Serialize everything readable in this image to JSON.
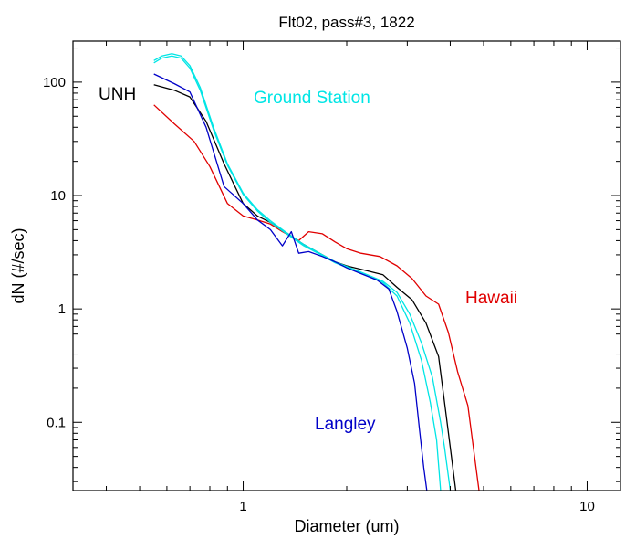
{
  "chart_data": {
    "type": "line",
    "title": "Flt02, pass#3, 1822",
    "xlabel": "Diameter (um)",
    "ylabel": "dN (#/sec)",
    "x_scale": "log",
    "y_scale": "log",
    "xlim": [
      0.32,
      12.5
    ],
    "ylim": [
      0.025,
      230
    ],
    "x_ticks": [
      {
        "value": 1,
        "label": "1"
      },
      {
        "value": 10,
        "label": "10"
      }
    ],
    "y_ticks": [
      {
        "value": 0.1,
        "label": "0.1"
      },
      {
        "value": 1,
        "label": "1"
      },
      {
        "value": 10,
        "label": "10"
      },
      {
        "value": 100,
        "label": "100"
      }
    ],
    "grid": false,
    "series": [
      {
        "name": "Hawaii",
        "color": "#e00000",
        "points": [
          [
            0.55,
            63
          ],
          [
            0.63,
            43
          ],
          [
            0.72,
            30
          ],
          [
            0.8,
            18
          ],
          [
            0.9,
            8.5
          ],
          [
            1.0,
            6.6
          ],
          [
            1.1,
            6.1
          ],
          [
            1.2,
            5.6
          ],
          [
            1.3,
            4.8
          ],
          [
            1.45,
            4.0
          ],
          [
            1.55,
            4.8
          ],
          [
            1.7,
            4.6
          ],
          [
            1.85,
            3.9
          ],
          [
            2.0,
            3.4
          ],
          [
            2.2,
            3.1
          ],
          [
            2.5,
            2.9
          ],
          [
            2.8,
            2.4
          ],
          [
            3.1,
            1.85
          ],
          [
            3.4,
            1.3
          ],
          [
            3.7,
            1.1
          ],
          [
            3.95,
            0.62
          ],
          [
            4.2,
            0.28
          ],
          [
            4.5,
            0.14
          ],
          [
            4.85,
            0.025
          ]
        ]
      },
      {
        "name": "UNH",
        "color": "#000000",
        "points": [
          [
            0.55,
            95
          ],
          [
            0.63,
            85
          ],
          [
            0.7,
            74
          ],
          [
            0.78,
            45
          ],
          [
            0.88,
            19
          ],
          [
            1.0,
            8.5
          ],
          [
            1.1,
            6.6
          ],
          [
            1.2,
            5.8
          ],
          [
            1.35,
            4.6
          ],
          [
            1.5,
            3.7
          ],
          [
            1.7,
            3.0
          ],
          [
            1.85,
            2.6
          ],
          [
            2.0,
            2.4
          ],
          [
            2.25,
            2.2
          ],
          [
            2.55,
            2.0
          ],
          [
            2.8,
            1.55
          ],
          [
            3.1,
            1.2
          ],
          [
            3.4,
            0.75
          ],
          [
            3.7,
            0.38
          ],
          [
            3.85,
            0.15
          ],
          [
            4.0,
            0.06
          ],
          [
            4.15,
            0.025
          ]
        ]
      },
      {
        "name": "Ground Station",
        "color": "#00e5e5",
        "points": [
          [
            0.55,
            155
          ],
          [
            0.58,
            170
          ],
          [
            0.62,
            178
          ],
          [
            0.66,
            170
          ],
          [
            0.7,
            140
          ],
          [
            0.75,
            90
          ],
          [
            0.82,
            40
          ],
          [
            0.9,
            19
          ],
          [
            1.0,
            10.5
          ],
          [
            1.1,
            7.5
          ],
          [
            1.2,
            6.0
          ],
          [
            1.35,
            4.6
          ],
          [
            1.5,
            3.7
          ],
          [
            1.7,
            3.0
          ],
          [
            1.85,
            2.6
          ],
          [
            2.05,
            2.3
          ],
          [
            2.3,
            2.0
          ],
          [
            2.55,
            1.75
          ],
          [
            2.8,
            1.4
          ],
          [
            3.05,
            0.9
          ],
          [
            3.3,
            0.5
          ],
          [
            3.55,
            0.25
          ],
          [
            3.75,
            0.1
          ],
          [
            3.85,
            0.06
          ],
          [
            4.0,
            0.025
          ]
        ]
      },
      {
        "name": "Ground Station",
        "color": "#00e5e5",
        "points": [
          [
            0.55,
            148
          ],
          [
            0.58,
            163
          ],
          [
            0.62,
            170
          ],
          [
            0.66,
            163
          ],
          [
            0.7,
            133
          ],
          [
            0.75,
            85
          ],
          [
            0.82,
            38
          ],
          [
            0.9,
            18.5
          ],
          [
            1.0,
            10.2
          ],
          [
            1.1,
            7.3
          ],
          [
            1.2,
            5.8
          ],
          [
            1.35,
            4.5
          ],
          [
            1.5,
            3.6
          ],
          [
            1.7,
            2.95
          ],
          [
            1.85,
            2.55
          ],
          [
            2.05,
            2.25
          ],
          [
            2.3,
            1.95
          ],
          [
            2.55,
            1.7
          ],
          [
            2.8,
            1.3
          ],
          [
            3.05,
            0.75
          ],
          [
            3.3,
            0.35
          ],
          [
            3.5,
            0.15
          ],
          [
            3.65,
            0.07
          ],
          [
            3.75,
            0.025
          ]
        ]
      },
      {
        "name": "Langley",
        "color": "#0000c8",
        "points": [
          [
            0.55,
            118
          ],
          [
            0.63,
            97
          ],
          [
            0.7,
            82
          ],
          [
            0.78,
            40
          ],
          [
            0.88,
            12
          ],
          [
            1.0,
            8.5
          ],
          [
            1.1,
            6.1
          ],
          [
            1.2,
            5.0
          ],
          [
            1.3,
            3.6
          ],
          [
            1.38,
            4.8
          ],
          [
            1.45,
            3.1
          ],
          [
            1.55,
            3.2
          ],
          [
            1.7,
            2.9
          ],
          [
            1.85,
            2.6
          ],
          [
            2.0,
            2.3
          ],
          [
            2.2,
            2.05
          ],
          [
            2.45,
            1.8
          ],
          [
            2.65,
            1.5
          ],
          [
            2.8,
            0.95
          ],
          [
            3.0,
            0.45
          ],
          [
            3.15,
            0.22
          ],
          [
            3.25,
            0.09
          ],
          [
            3.35,
            0.04
          ],
          [
            3.42,
            0.025
          ]
        ]
      }
    ],
    "annotations": [
      {
        "text": "UNH",
        "color": "#000000"
      },
      {
        "text": "Ground Station",
        "color": "#00e5e5"
      },
      {
        "text": "Hawaii",
        "color": "#e00000"
      },
      {
        "text": "Langley",
        "color": "#0000c8"
      }
    ]
  }
}
